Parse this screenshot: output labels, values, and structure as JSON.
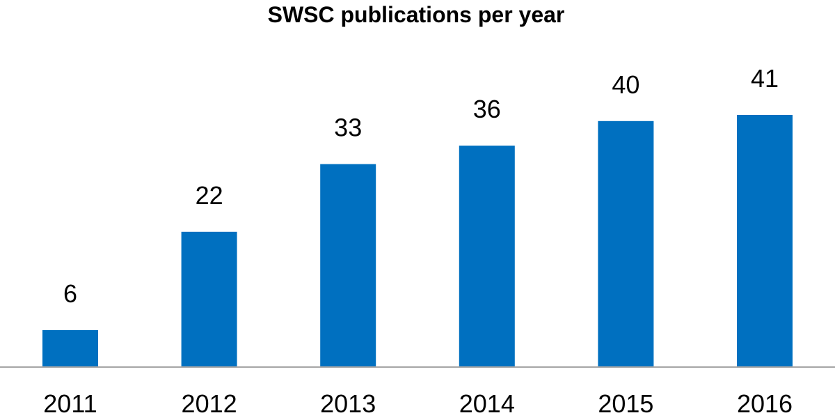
{
  "chart_data": {
    "type": "bar",
    "title": "SWSC publications per year",
    "xlabel": "",
    "ylabel": "",
    "categories": [
      "2011",
      "2012",
      "2013",
      "2014",
      "2015",
      "2016"
    ],
    "values": [
      6,
      22,
      33,
      36,
      40,
      41
    ],
    "data_labels": [
      "6",
      "22",
      "33",
      "36",
      "40",
      "41"
    ],
    "ylim": [
      0,
      41
    ],
    "grid": false,
    "legend": "none",
    "bar_color": "#0070C0",
    "axis_color": "#A6A6A6"
  }
}
